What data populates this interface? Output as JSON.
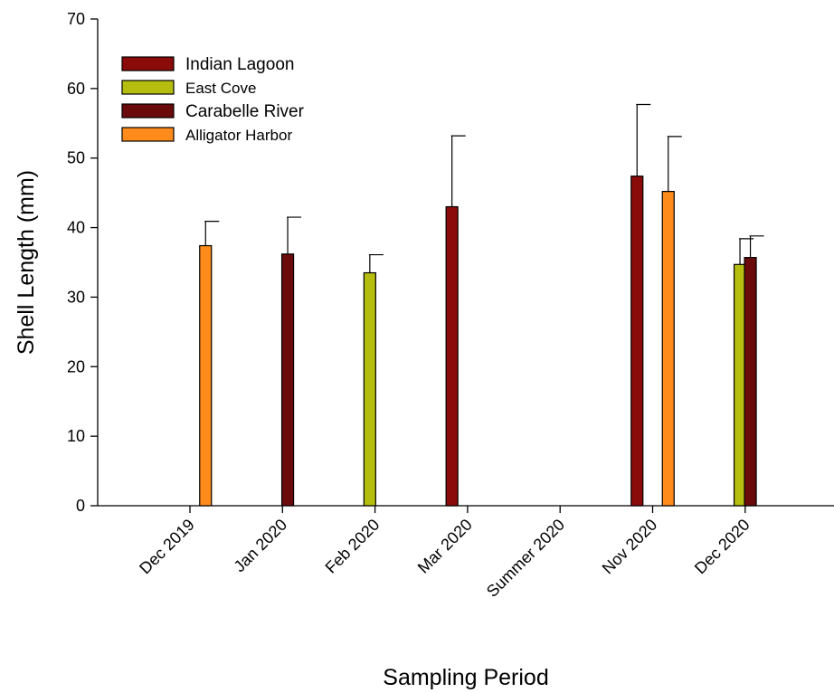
{
  "chart_data": {
    "type": "bar",
    "xlabel": "Sampling Period",
    "ylabel": "Shell Length (mm)",
    "ylim": [
      0,
      70
    ],
    "yticks": [
      0,
      10,
      20,
      30,
      40,
      50,
      60,
      70
    ],
    "grid": false,
    "legend_position": "top-left",
    "categories": [
      "Dec 2019",
      "Jan 2020",
      "Feb 2020",
      "Mar 2020",
      "Summer 2020",
      "Nov 2020",
      "Dec 2020"
    ],
    "series": [
      {
        "name": "Indian Lagoon",
        "color": "#8b0a0a",
        "values": [
          null,
          null,
          null,
          43.0,
          null,
          47.4,
          null
        ],
        "errors": [
          null,
          null,
          null,
          10.2,
          null,
          10.3,
          null
        ]
      },
      {
        "name": "East Cove",
        "color": "#b5bd0e",
        "values": [
          null,
          null,
          33.5,
          null,
          null,
          null,
          34.7
        ],
        "errors": [
          null,
          null,
          2.6,
          null,
          null,
          null,
          3.7
        ]
      },
      {
        "name": "Carabelle River",
        "color": "#6b0a0a",
        "values": [
          null,
          36.2,
          null,
          null,
          null,
          null,
          35.7
        ],
        "errors": [
          null,
          5.3,
          null,
          null,
          null,
          null,
          3.1
        ]
      },
      {
        "name": "Alligator Harbor",
        "color": "#ff8c1a",
        "values": [
          37.4,
          null,
          null,
          null,
          null,
          45.2,
          null
        ],
        "errors": [
          3.5,
          null,
          null,
          null,
          null,
          7.9,
          null
        ]
      }
    ]
  }
}
